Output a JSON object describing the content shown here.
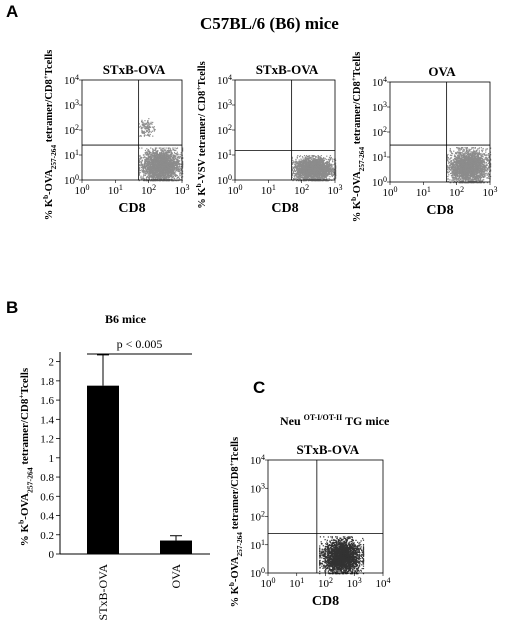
{
  "panel_A": {
    "letter": "A",
    "title": "C57BL/6 (B6) mice",
    "plots": [
      {
        "title": "STxB-OVA",
        "xlabel": "CD8",
        "ylabel_pre": "% K",
        "ylabel_sup": "b",
        "ylabel_mid": "-OVA",
        "ylabel_sub": "257-264",
        "ylabel_post": " tetramer/CD8",
        "ylabel_sup2": "+",
        "ylabel_end": "Tcells"
      },
      {
        "title": "STxB-OVA",
        "xlabel": "CD8",
        "ylabel_pre": "% K",
        "ylabel_sup": "b",
        "ylabel_mid": "-VSV tetramer/ CD8",
        "ylabel_sub": "",
        "ylabel_post": "",
        "ylabel_sup2": "+",
        "ylabel_end": "Tcells"
      },
      {
        "title": "OVA",
        "xlabel": "CD8",
        "ylabel_pre": "% K",
        "ylabel_sup": "b",
        "ylabel_mid": "-OVA",
        "ylabel_sub": "257-264",
        "ylabel_post": " tetramer/CD8",
        "ylabel_sup2": "+",
        "ylabel_end": "Tcells"
      }
    ]
  },
  "panel_B": {
    "letter": "B",
    "title": "B6 mice",
    "annotation": "p < 0.005",
    "ylabel_pre": "% K",
    "ylabel_sup": "b",
    "ylabel_mid": "-OVA",
    "ylabel_sub": "257-264",
    "ylabel_post": " tetramer/CD8",
    "ylabel_sup2": "+",
    "ylabel_end": "Tcells"
  },
  "panel_C": {
    "letter": "C",
    "title_main": "Neu ",
    "title_sup": "OT-I/OT-II",
    "title_end": " TG mice",
    "plot_title": "STxB-OVA",
    "xlabel": "CD8",
    "ylabel_pre": "% K",
    "ylabel_sup": "b",
    "ylabel_mid": "-OVA",
    "ylabel_sub": "257-264",
    "ylabel_post": " tetramer/CD8",
    "ylabel_sup2": "+",
    "ylabel_end": "Tcells"
  },
  "chart_data": [
    {
      "type": "scatter",
      "title": "STxB-OVA",
      "xlabel": "CD8",
      "xscale": "log",
      "yscale": "log",
      "xlim": [
        1,
        1000
      ],
      "ylim": [
        1,
        10000
      ],
      "xticks": [
        "10⁰",
        "10¹",
        "10²",
        "10³"
      ],
      "yticks": [
        "10⁰",
        "10¹",
        "10²",
        "10³",
        "10⁴"
      ],
      "gate": {
        "x": 50,
        "y": 25
      },
      "populations": [
        {
          "x_range": [
            50,
            1000
          ],
          "y_range": [
            1,
            20
          ],
          "density": "high"
        },
        {
          "x_range": [
            50,
            150
          ],
          "y_range": [
            60,
            300
          ],
          "density": "low"
        }
      ],
      "marker_color": "#8c8c8c"
    },
    {
      "type": "scatter",
      "title": "STxB-OVA",
      "xlabel": "CD8",
      "xscale": "log",
      "yscale": "log",
      "xlim": [
        1,
        1000
      ],
      "ylim": [
        1,
        10000
      ],
      "xticks": [
        "10⁰",
        "10¹",
        "10²",
        "10³"
      ],
      "yticks": [
        "10⁰",
        "10¹",
        "10²",
        "10³",
        "10⁴"
      ],
      "gate": {
        "x": 50,
        "y": 15
      },
      "populations": [
        {
          "x_range": [
            50,
            1000
          ],
          "y_range": [
            1,
            10
          ],
          "density": "high"
        }
      ],
      "marker_color": "#8c8c8c"
    },
    {
      "type": "scatter",
      "title": "OVA",
      "xlabel": "CD8",
      "xscale": "log",
      "yscale": "log",
      "xlim": [
        1,
        1000
      ],
      "ylim": [
        1,
        10000
      ],
      "xticks": [
        "10⁰",
        "10¹",
        "10²",
        "10³"
      ],
      "yticks": [
        "10⁰",
        "10¹",
        "10²",
        "10³",
        "10⁴"
      ],
      "gate": {
        "x": 50,
        "y": 30
      },
      "populations": [
        {
          "x_range": [
            50,
            1000
          ],
          "y_range": [
            1,
            25
          ],
          "density": "high"
        }
      ],
      "marker_color": "#8c8c8c"
    },
    {
      "type": "bar",
      "title": "B6 mice",
      "categories": [
        "STxB-OVA",
        "OVA"
      ],
      "values": [
        1.75,
        0.14
      ],
      "errors": [
        0.32,
        0.05
      ],
      "ylim": [
        0,
        2.1
      ],
      "yticks": [
        "0",
        "0.2",
        "0.4",
        "0.6",
        "0.8",
        "1",
        "1.2",
        "1.4",
        "1.6",
        "1.8",
        "2"
      ],
      "annotation": "p < 0.005",
      "bar_color": "#000000"
    },
    {
      "type": "scatter",
      "title": "STxB-OVA",
      "xlabel": "CD8",
      "xscale": "log",
      "yscale": "log",
      "xlim": [
        1,
        10000
      ],
      "ylim": [
        1,
        10000
      ],
      "xticks": [
        "10⁰",
        "10¹",
        "10²",
        "10³",
        "10⁴"
      ],
      "yticks": [
        "10⁰",
        "10¹",
        "10²",
        "10³",
        "10⁴"
      ],
      "gate": {
        "x": 50,
        "y": 25
      },
      "populations": [
        {
          "x_range": [
            60,
            2000
          ],
          "y_range": [
            1,
            20
          ],
          "density": "high"
        }
      ],
      "marker_color": "#333333"
    }
  ]
}
